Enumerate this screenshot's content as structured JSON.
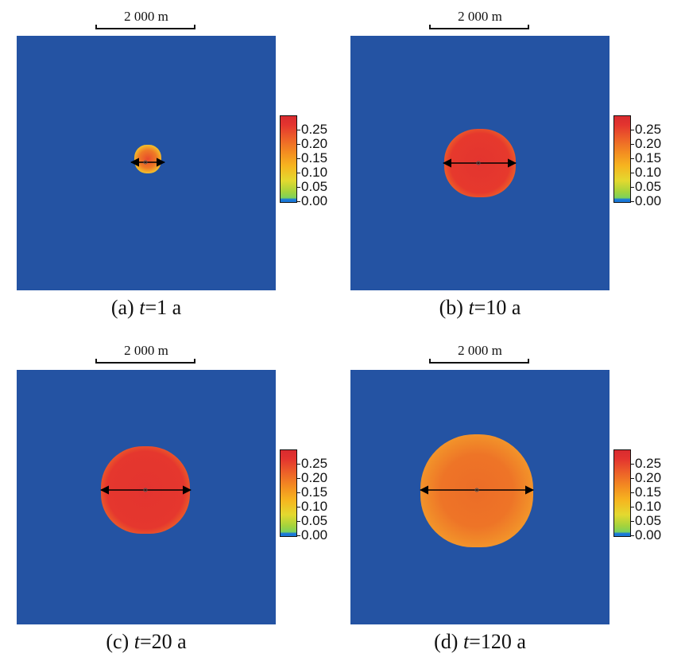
{
  "scale_label": "2 000 m",
  "colorbar": {
    "ticks": [
      "0.25",
      "0.20",
      "0.15",
      "0.10",
      "0.05",
      "0.00"
    ],
    "colors": {
      "background": "#2453a3",
      "low": "#1a78d8",
      "mid_low": "#7dd25a",
      "mid": "#f6b51f",
      "high": "#d92b2f"
    }
  },
  "panels": [
    {
      "id": "a",
      "prefix": "(a) ",
      "var": "t",
      "suffix": "=1 a"
    },
    {
      "id": "b",
      "prefix": "(b) ",
      "var": "t",
      "suffix": "=10 a"
    },
    {
      "id": "c",
      "prefix": "(c) ",
      "var": "t",
      "suffix": "=20 a"
    },
    {
      "id": "d",
      "prefix": "(d) ",
      "var": "t",
      "suffix": "=120 a"
    }
  ]
}
